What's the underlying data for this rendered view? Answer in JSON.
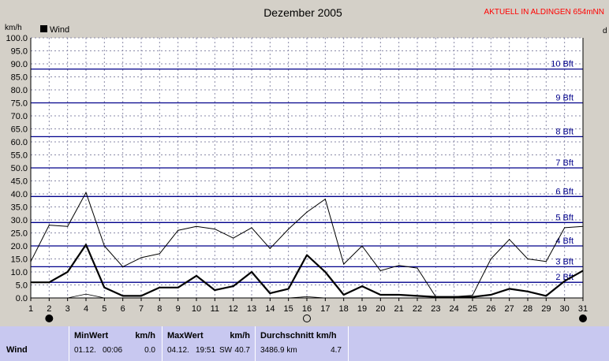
{
  "header": {
    "title": "Dezember 2005",
    "status": "AKTUELL IN ALDINGEN 654mNN",
    "y_unit": "km/h",
    "right_unit": "d"
  },
  "chart_data": {
    "type": "line",
    "x": [
      1,
      2,
      3,
      4,
      5,
      6,
      7,
      8,
      9,
      10,
      11,
      12,
      13,
      14,
      15,
      16,
      17,
      18,
      19,
      20,
      21,
      22,
      23,
      24,
      25,
      26,
      27,
      28,
      29,
      30,
      31
    ],
    "xlabel": "",
    "ylabel": "km/h",
    "ylim": [
      0,
      100
    ],
    "ytick_step": 5,
    "legend": [
      "Wind"
    ],
    "legend_position": "top-left",
    "grid": true,
    "series": [
      {
        "name": "Wind",
        "style": "bold",
        "values": [
          6,
          6,
          10,
          20.5,
          4,
          0.8,
          0.8,
          4,
          4,
          8.5,
          3,
          4.5,
          10,
          1.8,
          3.5,
          16.5,
          10,
          1.2,
          4.5,
          1.2,
          1.2,
          0.8,
          0.4,
          0.4,
          0.4,
          1.2,
          3.5,
          2.5,
          0.8,
          6.5,
          10.5
        ]
      },
      {
        "name": "",
        "style": "thin",
        "values": [
          14,
          28,
          27.5,
          40.5,
          20,
          12,
          15.5,
          17,
          26,
          27.5,
          26.5,
          23,
          27,
          19,
          26.5,
          33,
          38,
          13,
          20,
          10.5,
          12.5,
          11.5,
          0.5,
          0.5,
          1,
          15,
          22.5,
          15,
          14,
          27,
          27.5
        ]
      },
      {
        "name": "",
        "style": "hairline",
        "values": [
          0,
          0,
          0,
          1.5,
          0,
          0,
          0,
          0,
          0,
          0,
          0,
          0,
          0,
          0,
          0,
          0.5,
          0,
          0,
          0,
          0,
          0,
          0,
          0,
          0,
          0,
          0,
          0,
          0,
          0,
          0,
          0
        ]
      }
    ],
    "beaufort_lines": [
      {
        "label": "2 Bft",
        "value": 6
      },
      {
        "label": "3 Bft",
        "value": 12
      },
      {
        "label": "4 Bft",
        "value": 20
      },
      {
        "label": "5 Bft",
        "value": 29
      },
      {
        "label": "6 Bft",
        "value": 39
      },
      {
        "label": "7 Bft",
        "value": 50
      },
      {
        "label": "8 Bft",
        "value": 62
      },
      {
        "label": "9 Bft",
        "value": 75
      },
      {
        "label": "10 Bft",
        "value": 88
      }
    ],
    "moon_phases": [
      {
        "day": 2,
        "phase": "full"
      },
      {
        "day": 16,
        "phase": "new"
      },
      {
        "day": 31,
        "phase": "full"
      }
    ],
    "colors": {
      "plot_bg": "#ffffff",
      "grid": "#8a8aa8",
      "beaufort": "#00008b",
      "series": "#000000",
      "status": "#ff0000",
      "stats_bg": "#c8c8f0"
    }
  },
  "stats": {
    "row_label": "Wind",
    "min": {
      "header": "MinWert",
      "unit": "km/h",
      "date": "01.12.",
      "time": "00:06",
      "value": "0.0"
    },
    "max": {
      "header": "MaxWert",
      "unit": "km/h",
      "date": "04.12.",
      "time": "19:51",
      "dir": "SW",
      "value": "40.7"
    },
    "avg": {
      "header": "Durchschnitt km/h",
      "distance": "3486.9 km",
      "value": "4.7"
    }
  }
}
